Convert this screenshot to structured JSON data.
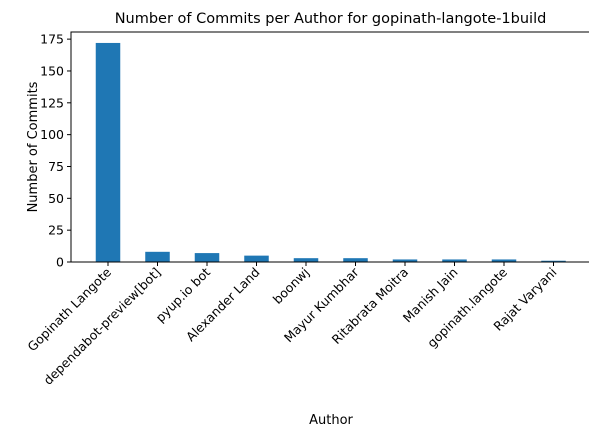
{
  "chart_data": {
    "type": "bar",
    "title": "Number of Commits per Author for gopinath-langote-1build",
    "xlabel": "Author",
    "ylabel": "Number of Commits",
    "categories": [
      "Gopinath Langote",
      "dependabot-preview[bot]",
      "pyup.io bot",
      "Alexander Land",
      "boonwj",
      "Mayur Kumbhar",
      "Ritabrata Moitra",
      "Manish Jain",
      "gopinath.langote",
      "Rajat Varyani"
    ],
    "values": [
      172,
      8,
      7,
      5,
      3,
      3,
      2,
      2,
      2,
      1
    ],
    "yticks": [
      0,
      25,
      50,
      75,
      100,
      125,
      150,
      175
    ],
    "ylim": [
      0,
      180.6
    ],
    "grid": false,
    "bar_color": "#1f77b4"
  }
}
